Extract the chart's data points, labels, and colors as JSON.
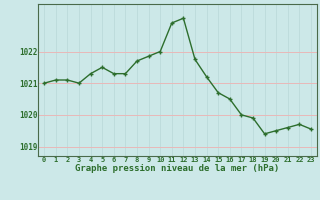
{
  "hours": [
    0,
    1,
    2,
    3,
    4,
    5,
    6,
    7,
    8,
    9,
    10,
    11,
    12,
    13,
    14,
    15,
    16,
    17,
    18,
    19,
    20,
    21,
    22,
    23
  ],
  "pressure": [
    1021.0,
    1021.1,
    1021.1,
    1021.0,
    1021.3,
    1021.5,
    1021.3,
    1021.3,
    1021.7,
    1021.85,
    1022.0,
    1022.9,
    1023.05,
    1021.75,
    1021.2,
    1020.7,
    1020.5,
    1020.0,
    1019.9,
    1019.4,
    1019.5,
    1019.6,
    1019.7,
    1019.55
  ],
  "line_color": "#2d6e2d",
  "marker_color": "#2d6e2d",
  "bg_color": "#cce8e8",
  "grid_color_y": "#e8b8b8",
  "grid_color_x": "#b8d8d8",
  "xlabel": "Graphe pression niveau de la mer (hPa)",
  "xlabel_color": "#2d6e2d",
  "tick_color": "#2d6e2d",
  "ylim": [
    1018.7,
    1023.5
  ],
  "yticks": [
    1019,
    1020,
    1021,
    1022
  ],
  "xticks": [
    0,
    1,
    2,
    3,
    4,
    5,
    6,
    7,
    8,
    9,
    10,
    11,
    12,
    13,
    14,
    15,
    16,
    17,
    18,
    19,
    20,
    21,
    22,
    23
  ],
  "xtick_labels": [
    "0",
    "1",
    "2",
    "3",
    "4",
    "5",
    "6",
    "7",
    "8",
    "9",
    "10",
    "11",
    "12",
    "13",
    "14",
    "15",
    "16",
    "17",
    "18",
    "19",
    "20",
    "21",
    "22",
    "23"
  ],
  "border_color": "#4a6a4a"
}
